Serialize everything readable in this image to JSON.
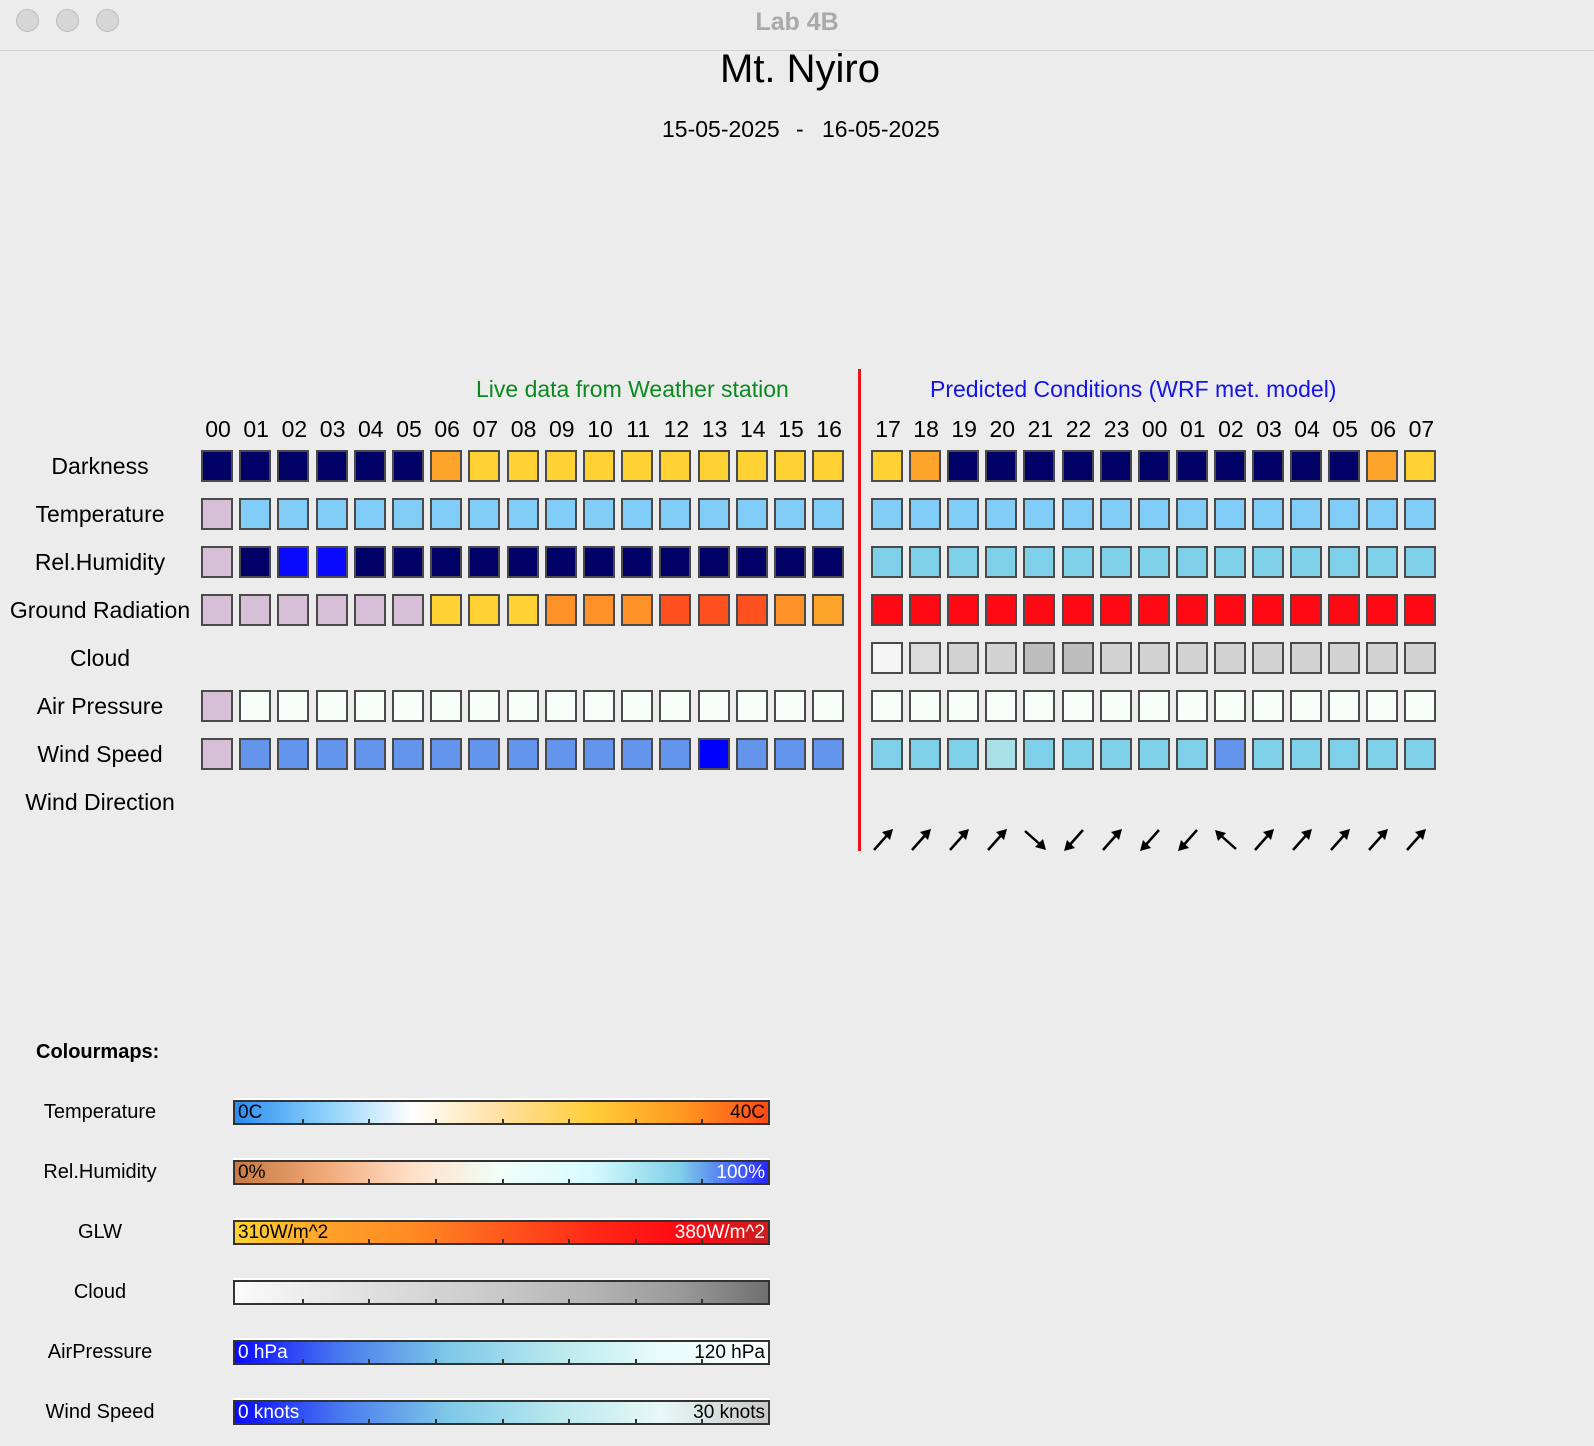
{
  "window": {
    "title": "Lab 4B"
  },
  "header": {
    "station": "Mt. Nyiro",
    "date_from": "15-05-2025",
    "date_sep": "-",
    "date_to": "16-05-2025"
  },
  "sections": {
    "live": "Live data from Weather station",
    "live_color": "#0a8a1e",
    "predicted": "Predicted Conditions (WRF met. model)",
    "predicted_color": "#1414e6",
    "divider_color": "#e8141c"
  },
  "hours_live": [
    "00",
    "01",
    "02",
    "03",
    "04",
    "05",
    "06",
    "07",
    "08",
    "09",
    "10",
    "11",
    "12",
    "13",
    "14",
    "15",
    "16"
  ],
  "hours_pred": [
    "17",
    "18",
    "19",
    "20",
    "21",
    "22",
    "23",
    "00",
    "01",
    "02",
    "03",
    "04",
    "05",
    "06",
    "07"
  ],
  "rows": [
    {
      "key": "darkness",
      "label": "Darkness",
      "live": [
        "#000066",
        "#000066",
        "#000066",
        "#000066",
        "#000066",
        "#000066",
        "#ffa32b",
        "#ffd233",
        "#ffd233",
        "#ffd233",
        "#ffd233",
        "#ffd233",
        "#ffd233",
        "#ffd233",
        "#ffd233",
        "#ffd233",
        "#ffd233"
      ],
      "pred": [
        "#ffd233",
        "#ffa32b",
        "#000066",
        "#000066",
        "#000066",
        "#000066",
        "#000066",
        "#000066",
        "#000066",
        "#000066",
        "#000066",
        "#000066",
        "#000066",
        "#ffa32b",
        "#ffd233"
      ]
    },
    {
      "key": "temperature",
      "label": "Temperature",
      "live": [
        "#d8bfd8",
        "#82cdf8",
        "#82cdf8",
        "#82cdf8",
        "#82cdf8",
        "#82cdf8",
        "#82cdf8",
        "#82cdf8",
        "#82cdf8",
        "#82cdf8",
        "#82cdf8",
        "#82cdf8",
        "#82cdf8",
        "#82cdf8",
        "#82cdf8",
        "#82cdf8",
        "#82cdf8"
      ],
      "pred": [
        "#82cdf8",
        "#82cdf8",
        "#82cdf8",
        "#82cdf8",
        "#82cdf8",
        "#82cdf8",
        "#82cdf8",
        "#82cdf8",
        "#82cdf8",
        "#82cdf8",
        "#82cdf8",
        "#82cdf8",
        "#82cdf8",
        "#82cdf8",
        "#82cdf8"
      ]
    },
    {
      "key": "rel-humidity",
      "label": "Rel.Humidity",
      "live": [
        "#d8bfd8",
        "#000066",
        "#0a0aff",
        "#0a0aff",
        "#000066",
        "#000066",
        "#000066",
        "#000066",
        "#000066",
        "#000066",
        "#000066",
        "#000066",
        "#000066",
        "#000066",
        "#000066",
        "#000066",
        "#000066"
      ],
      "pred": [
        "#7ecfe8",
        "#7ecfe8",
        "#7ecfe8",
        "#7ecfe8",
        "#7ecfe8",
        "#7ecfe8",
        "#7ecfe8",
        "#7ecfe8",
        "#7ecfe8",
        "#7ecfe8",
        "#7ecfe8",
        "#7ecfe8",
        "#7ecfe8",
        "#7ecfe8",
        "#7ecfe8"
      ]
    },
    {
      "key": "ground-radiation",
      "label": "Ground Radiation",
      "live": [
        "#d8bfd8",
        "#d8bfd8",
        "#d8bfd8",
        "#d8bfd8",
        "#d8bfd8",
        "#d8bfd8",
        "#ffd233",
        "#ffd233",
        "#ffd233",
        "#ff9128",
        "#ff9128",
        "#ff9128",
        "#ff5020",
        "#ff5020",
        "#ff5020",
        "#ff9128",
        "#ffa32b"
      ],
      "pred": [
        "#ff0a14",
        "#ff0a14",
        "#ff0a14",
        "#ff0a14",
        "#ff0a14",
        "#ff0a14",
        "#ff0a14",
        "#ff0a14",
        "#ff0a14",
        "#ff0a14",
        "#ff0a14",
        "#ff0a14",
        "#ff0a14",
        "#ff0a14",
        "#ff0a14"
      ]
    },
    {
      "key": "cloud",
      "label": "Cloud",
      "live": [],
      "pred": [
        "#f5f5f5",
        "#dcdcdc",
        "#d3d3d3",
        "#d3d3d3",
        "#bebebe",
        "#bebebe",
        "#d3d3d3",
        "#d3d3d3",
        "#d3d3d3",
        "#d3d3d3",
        "#d3d3d3",
        "#d3d3d3",
        "#d3d3d3",
        "#d3d3d3",
        "#d3d3d3"
      ]
    },
    {
      "key": "air-pressure",
      "label": "Air Pressure",
      "live": [
        "#d8bfd8",
        "#f8fffa",
        "#f8fffa",
        "#f8fffa",
        "#f8fffa",
        "#f8fffa",
        "#f8fffa",
        "#f8fffa",
        "#f8fffa",
        "#f8fffa",
        "#f8fffa",
        "#f8fffa",
        "#f8fffa",
        "#f8fffa",
        "#f8fffa",
        "#f8fffa",
        "#f8fffa"
      ],
      "pred": [
        "#f8fffa",
        "#f8fffa",
        "#f8fffa",
        "#f8fffa",
        "#f8fffa",
        "#f8fffa",
        "#f8fffa",
        "#f8fffa",
        "#f8fffa",
        "#f8fffa",
        "#f8fffa",
        "#f8fffa",
        "#f8fffa",
        "#f8fffa",
        "#f8fffa"
      ]
    },
    {
      "key": "wind-speed",
      "label": "Wind Speed",
      "live": [
        "#d8bfd8",
        "#6495ed",
        "#6495ed",
        "#6495ed",
        "#6495ed",
        "#6495ed",
        "#6495ed",
        "#6495ed",
        "#6495ed",
        "#6495ed",
        "#6495ed",
        "#6495ed",
        "#6495ed",
        "#0000ff",
        "#6495ed",
        "#6495ed",
        "#6495ed"
      ],
      "pred": [
        "#7ecfe8",
        "#7ecfe8",
        "#7ecfe8",
        "#a8e0e8",
        "#7ecfe8",
        "#7ecfe8",
        "#7ecfe8",
        "#7ecfe8",
        "#7ecfe8",
        "#6495ed",
        "#7ecfe8",
        "#7ecfe8",
        "#7ecfe8",
        "#7ecfe8",
        "#7ecfe8"
      ]
    },
    {
      "key": "wind-direction",
      "label": "Wind Direction",
      "live": [],
      "pred": []
    }
  ],
  "wind_direction_pred_deg": [
    225,
    225,
    225,
    225,
    315,
    45,
    225,
    45,
    45,
    135,
    225,
    225,
    225,
    225,
    225
  ],
  "colourmaps": {
    "title": "Colourmaps:",
    "bars": [
      {
        "key": "temperature",
        "label": "Temperature",
        "min": "0C",
        "max": "40C",
        "min_color": "#000",
        "max_color": "#000",
        "stops": [
          "#2b8cf0",
          "#8ad0fa",
          "#ffffff",
          "#ffe0a0",
          "#ffce3a",
          "#ff9a22",
          "#ff4a14"
        ]
      },
      {
        "key": "rel-humidity",
        "label": "Rel.Humidity",
        "min": "0%",
        "max": "100%",
        "min_color": "#000",
        "max_color": "#fff",
        "stops": [
          "#c87a40",
          "#f0a878",
          "#ffe0c8",
          "#f0fff8",
          "#d8fbff",
          "#7fd0e8",
          "#2828ff"
        ]
      },
      {
        "key": "glw",
        "label": "GLW",
        "min": "310W/m^2",
        "max": "380W/m^2",
        "min_color": "#000",
        "max_color": "#fff",
        "stops": [
          "#ffd233",
          "#ffa32b",
          "#ff8a22",
          "#ff5a1e",
          "#ff2a16",
          "#ff0a14",
          "#cc1e1e"
        ]
      },
      {
        "key": "cloud",
        "label": "Cloud",
        "min": "",
        "max": "",
        "min_color": "#000",
        "max_color": "#000",
        "stops": [
          "#fbfbfb",
          "#e8e8e8",
          "#d8d8d8",
          "#c8c8c8",
          "#b4b4b4",
          "#9a9a9a",
          "#707070"
        ]
      },
      {
        "key": "air-pressure",
        "label": "AirPressure",
        "min": "0 hPa",
        "max": "120 hPa",
        "min_color": "#fff",
        "max_color": "#000",
        "stops": [
          "#0a0aff",
          "#4a7aee",
          "#7ec8e8",
          "#b8e8ee",
          "#e8fcfb",
          "#fbfffe"
        ]
      },
      {
        "key": "wind-speed",
        "label": "Wind Speed",
        "min": "0 knots",
        "max": "30 knots",
        "min_color": "#fff",
        "max_color": "#000",
        "stops": [
          "#0a0aff",
          "#4a7aee",
          "#7ec8e8",
          "#b8e8ee",
          "#e8f8f6",
          "#c8c8c8"
        ]
      }
    ]
  }
}
